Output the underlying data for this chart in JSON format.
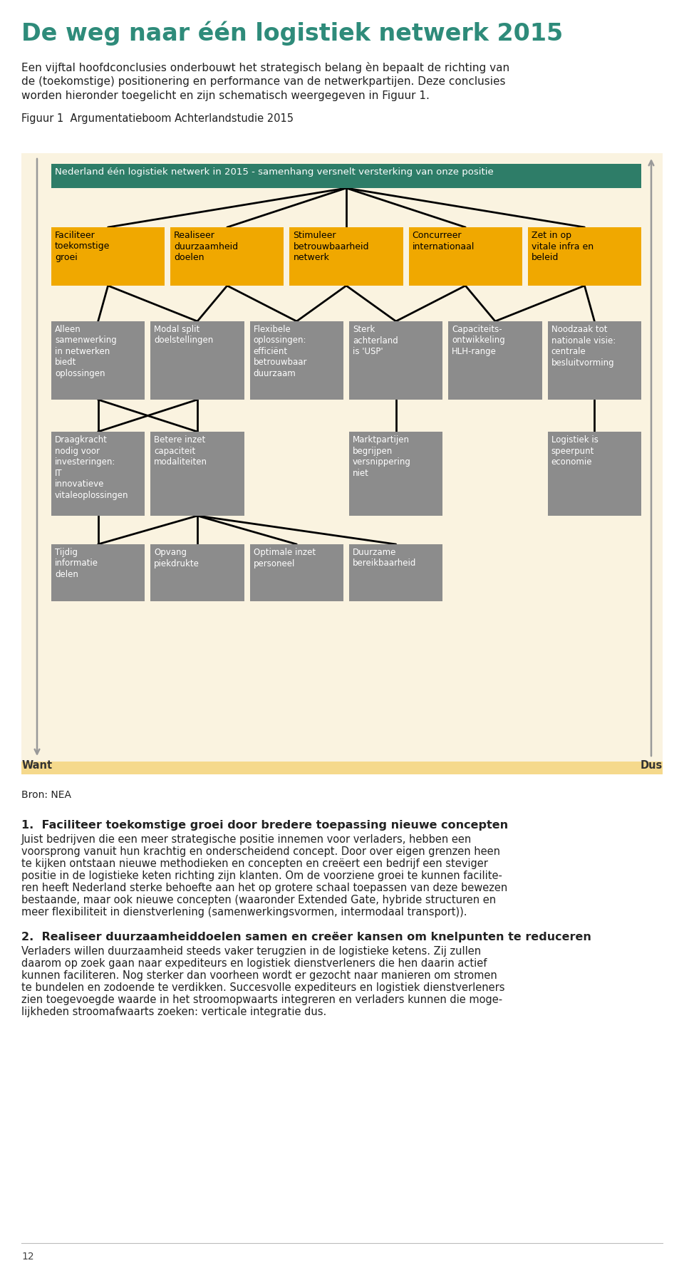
{
  "page_bg": "#ffffff",
  "chart_bg": "#faf3e0",
  "chart_strip_color": "#f5d98c",
  "title_text": "De weg naar één logistiek netwerk 2015",
  "title_color": "#2e8b7a",
  "subtitle_lines": [
    "Een vijftal hoofdconclusies onderbouwt het strategisch belang èn bepaalt de richting van",
    "de (toekomstige) positionering en performance van de netwerkpartijen. Deze conclusies",
    "worden hieronder toegelicht en zijn schematisch weergegeven in Figuur 1."
  ],
  "fig_label": "Figuur 1  Argumentatieboom Achterlandstudie 2015",
  "root_text": "Nederland één logistiek netwerk in 2015 - samenhang versnelt versterking van onze positie",
  "root_color": "#2e7d68",
  "root_text_color": "#ffffff",
  "level1_color": "#f0a800",
  "level1_text_color": "#000000",
  "gray_color": "#8c8c8c",
  "gray_text_color": "#ffffff",
  "level1_boxes": [
    "Faciliteer\ntoekomstige\ngroei",
    "Realiseer\nduurzaamheid\ndoelen",
    "Stimuleer\nbetrouwbaarheid\nnetwerk",
    "Concurreer\ninternationaal",
    "Zet in op\nvitale infra en\nbeleid"
  ],
  "level2_boxes": [
    "Alleen\nsamenwerking\nin netwerken\nbiedt\noplossingen",
    "Modal split\ndoelstellingen",
    "Flexibele\noplossingen:\nefficiënt\nbetrouwbaar\nduurzaam",
    "Sterk\nachterland\nis 'USP'",
    "Capaciteits-\nontwikkeling\nHLH-range",
    "Noodzaak tot\nnationale visie:\ncentrale\nbesluitvorming"
  ],
  "level3_active": {
    "0": "Draagkracht\nnodig voor\ninvesteringen:\nIT\ninnovatieve\nvitaleoplossingen",
    "1": "Betere inzet\ncapaciteit\nmodaliteiten",
    "3": "Marktpartijen\nbegrijpen\nversnippering\nniet",
    "5": "Logistiek is\nspeerpunt\neconomie"
  },
  "level4_active": {
    "0": "Tijdig\ninformatie\ndelen",
    "1": "Opvang\npiekdrukte",
    "2": "Optimale inzet\npersoneel",
    "3": "Duurzame\nbereikbaarheid"
  },
  "want_text": "Want",
  "dus_text": "Dus",
  "bron_text": "Bron: NEA",
  "section1_title": "1.  Faciliteer toekomstige groei door bredere toepassing nieuwe concepten",
  "section1_lines": [
    "Juist bedrijven die een meer strategische positie innemen voor verladers, hebben een",
    "voorsprong vanuit hun krachtig en onderscheidend concept. Door over eigen grenzen heen",
    "te kijken ontstaan nieuwe methodieken en concepten en creëert een bedrijf een steviger",
    "positie in de logistieke keten richting zijn klanten. Om de voorziene groei te kunnen facilite-",
    "ren heeft Nederland sterke behoefte aan het op grotere schaal toepassen van deze bewezen",
    "bestaande, maar ook nieuwe concepten (waaronder Extended Gate, hybride structuren en",
    "meer flexibiliteit in dienstverlening (samenwerkingsvormen, intermodaal transport))."
  ],
  "section2_title": "2.  Realiseer duurzaamheiddoelen samen en creëer kansen om knelpunten te reduceren",
  "section2_lines": [
    "Verladers willen duurzaamheid steeds vaker terugzien in de logistieke ketens. Zij zullen",
    "daarom op zoek gaan naar expediteurs en logistiek dienstverleners die hen daarin actief",
    "kunnen faciliteren. Nog sterker dan voorheen wordt er gezocht naar manieren om stromen",
    "te bundelen en zodoende te verdikken. Succesvolle expediteurs en logistiek dienstverleners",
    "zien toegevoegde waarde in het stroomopwaarts integreren en verladers kunnen die moge-",
    "lijkheden stroomafwaarts zoeken: verticale integratie dus."
  ],
  "page_num": "12"
}
